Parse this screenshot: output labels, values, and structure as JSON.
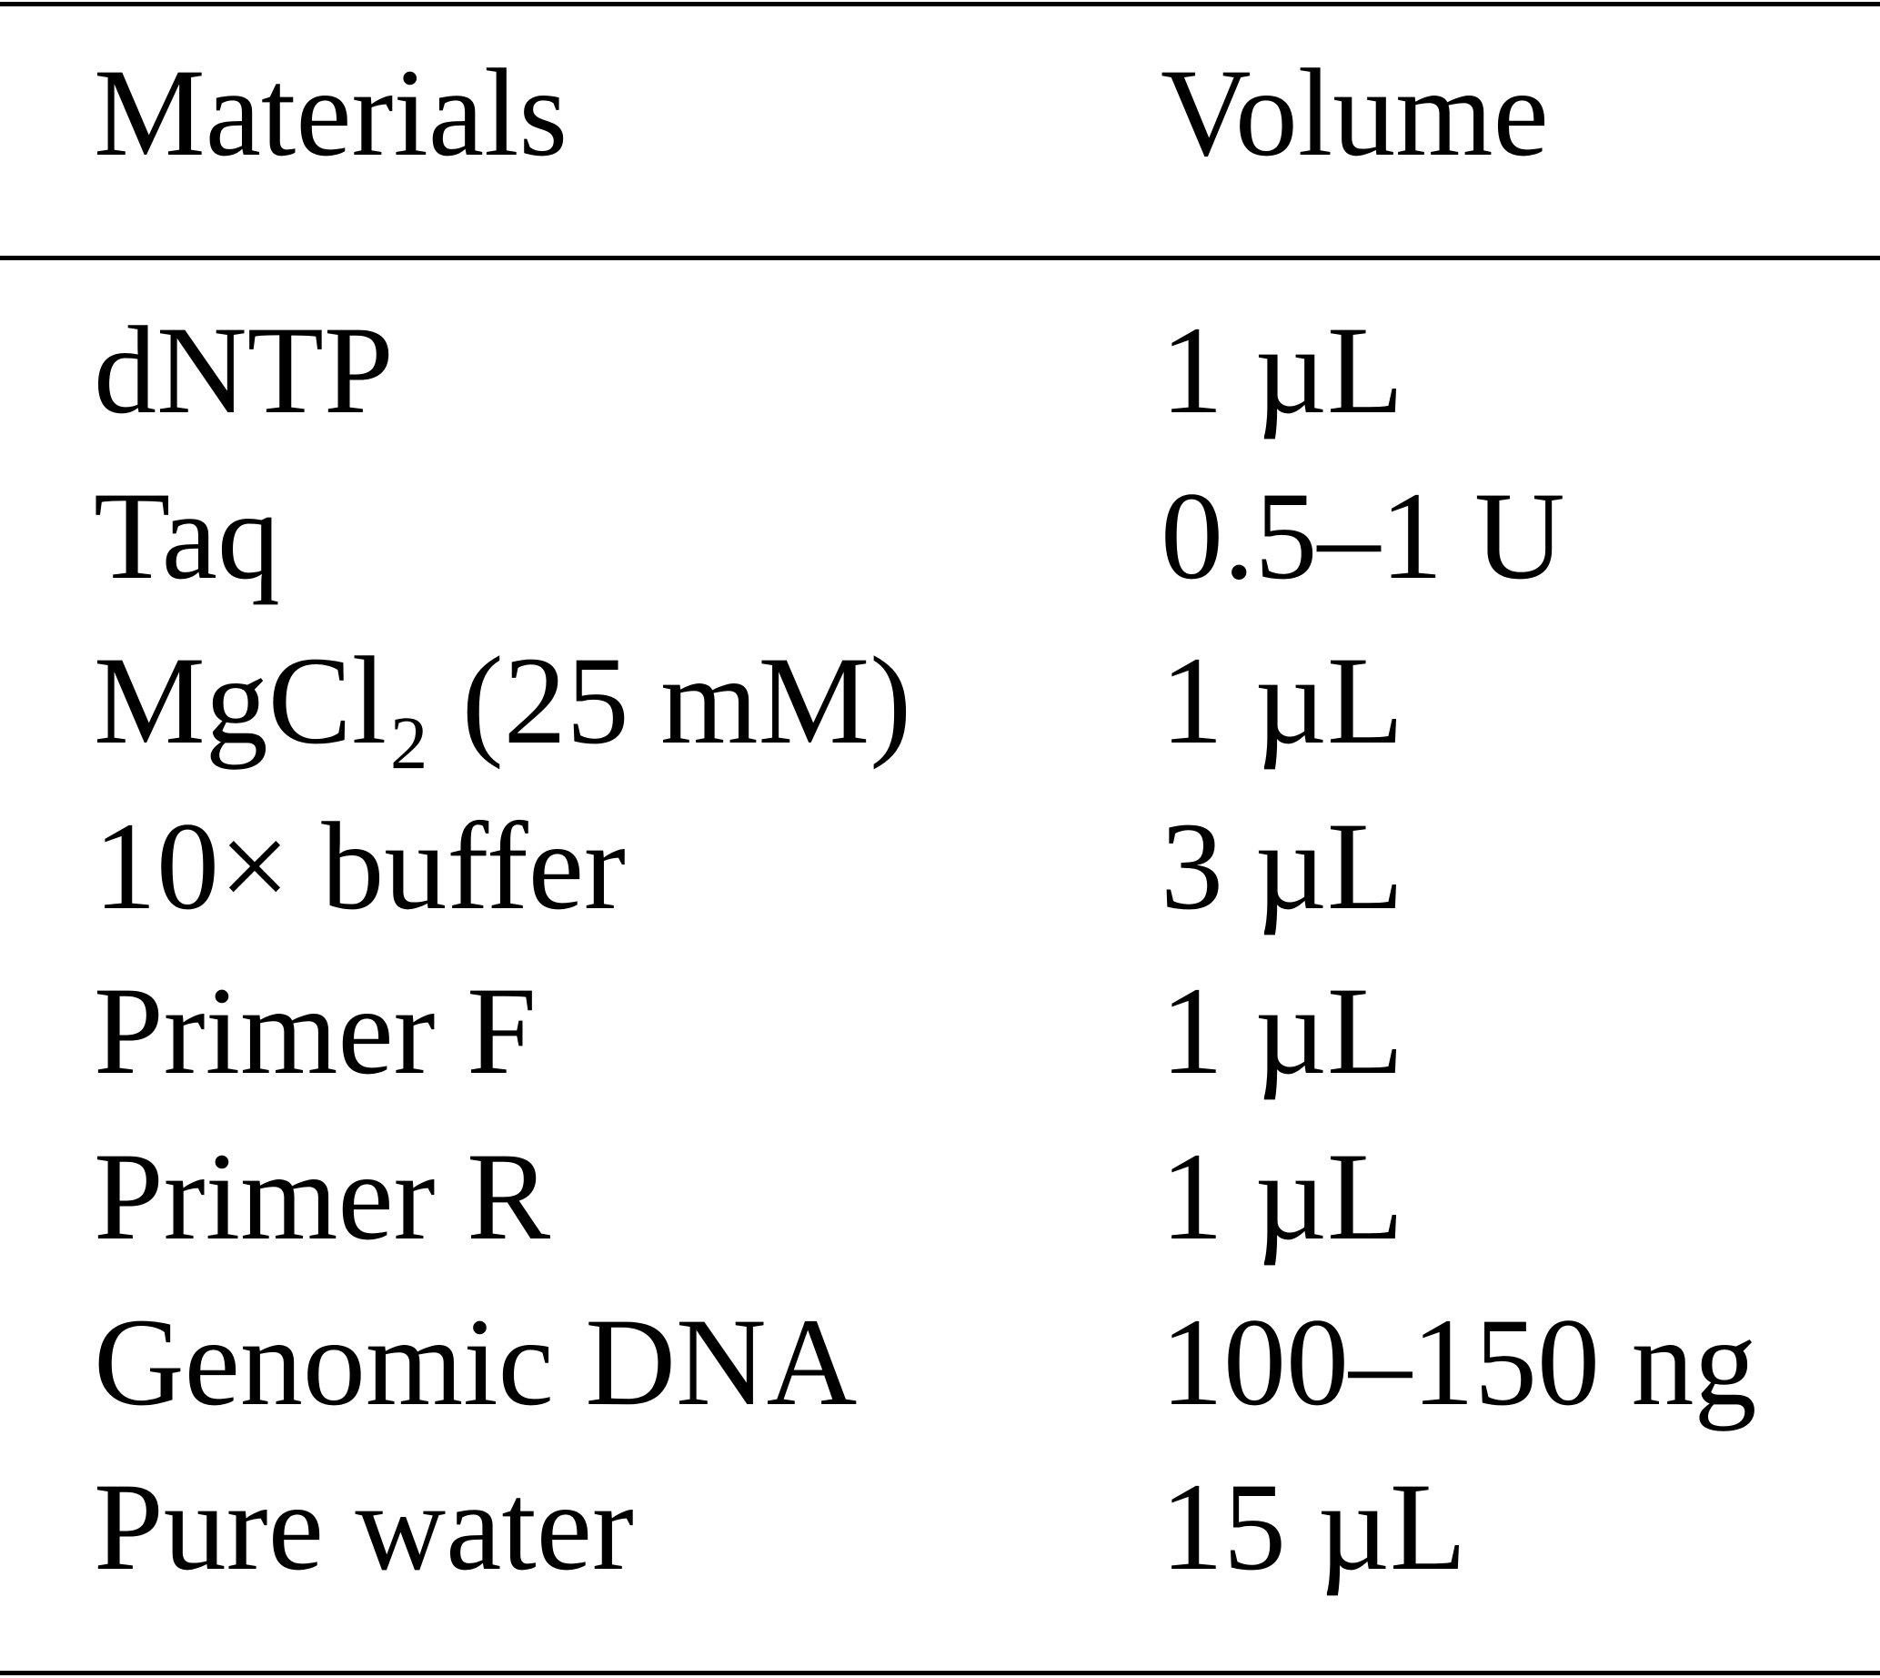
{
  "table": {
    "header": [
      "Materials",
      "Volume"
    ],
    "rows": [
      [
        "dNTP",
        "1 µL"
      ],
      [
        "Taq",
        "0.5–1 U"
      ],
      [
        "MgCl₂ (25 mM)",
        "1 µL"
      ],
      [
        "10× buffer",
        "3 µL"
      ],
      [
        "Primer F",
        "1 µL"
      ],
      [
        "Primer R",
        "1 µL"
      ],
      [
        "Genomic DNA",
        "100–150 ng"
      ],
      [
        "Pure water",
        "15 µL"
      ]
    ]
  }
}
